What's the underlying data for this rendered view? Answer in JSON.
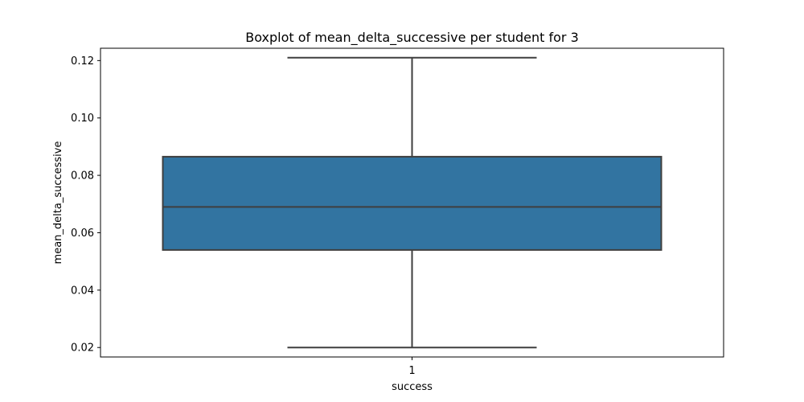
{
  "chart_data": {
    "type": "boxplot",
    "title": "Boxplot of mean_delta_successive per student for 3",
    "xlabel": "success",
    "ylabel": "mean_delta_successive",
    "categories": [
      "1"
    ],
    "boxes": [
      {
        "category": "1",
        "whisker_low": 0.02,
        "q1": 0.054,
        "median": 0.069,
        "q3": 0.0865,
        "whisker_high": 0.121
      }
    ],
    "ylim": [
      0.0167,
      0.1243
    ],
    "yticks": [
      0.02,
      0.04,
      0.06,
      0.08,
      0.1,
      0.12
    ],
    "ytick_labels": [
      "0.02",
      "0.04",
      "0.06",
      "0.08",
      "0.10",
      "0.12"
    ],
    "grid": false,
    "legend": "none",
    "colors": {
      "box_fill": "#3274a1",
      "box_edge": "#3f3f3f",
      "axes": "#000000",
      "text": "#000000"
    }
  }
}
